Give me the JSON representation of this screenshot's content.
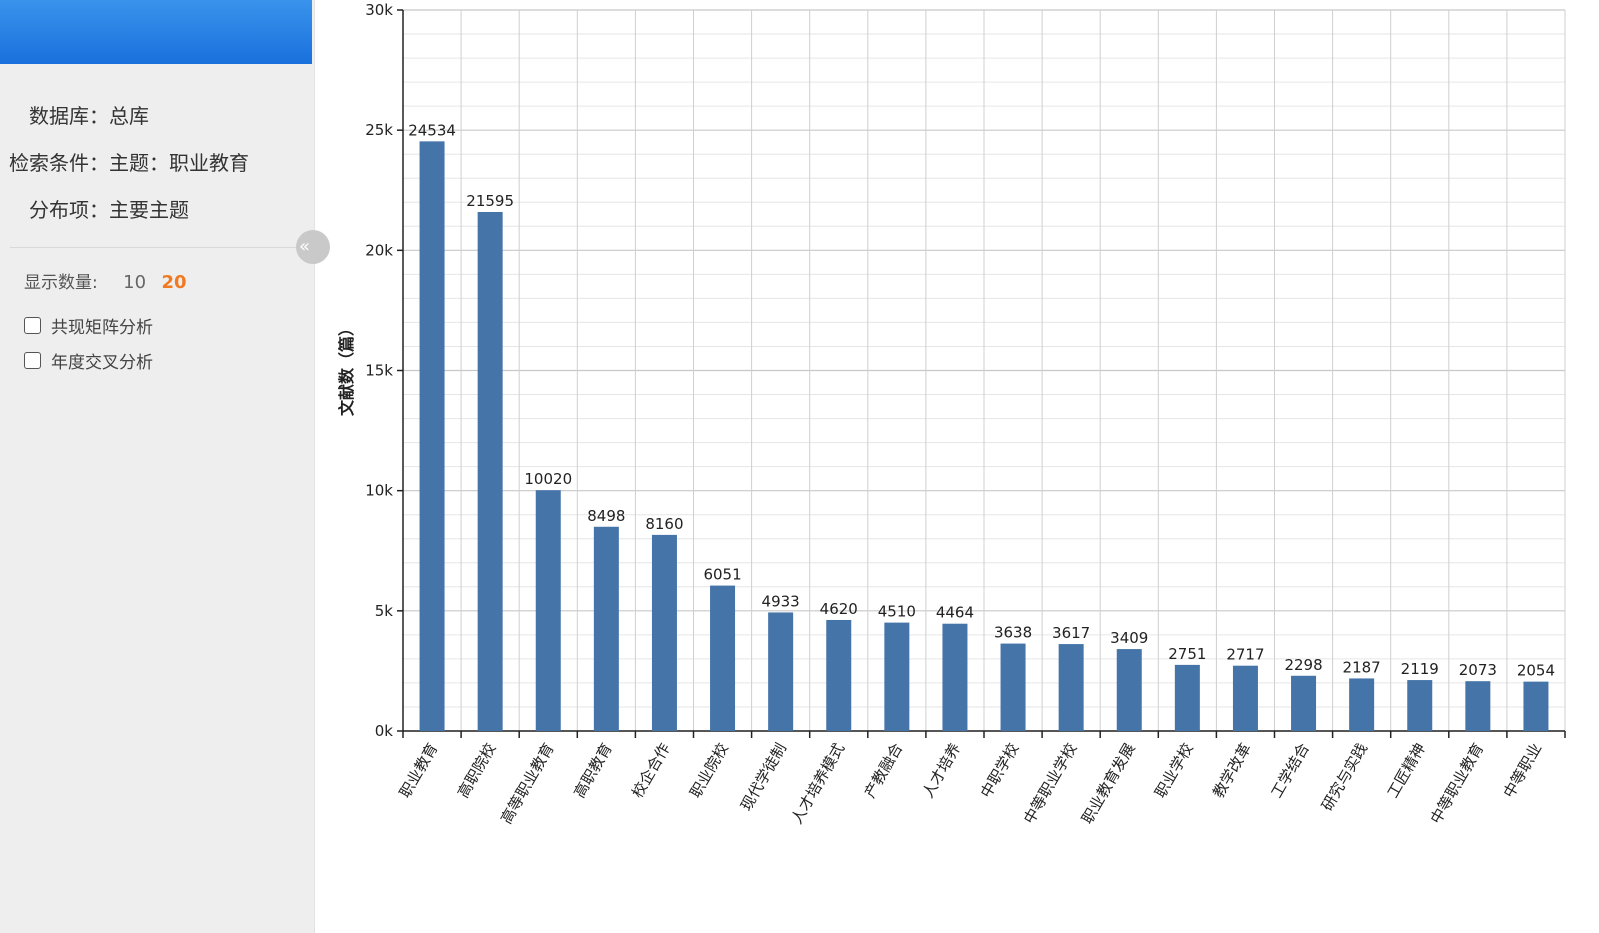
{
  "sidebar": {
    "database_label": "数据库：",
    "database_value": "总库",
    "criteria_label": "检索条件：",
    "criteria_value": "主题：职业教育",
    "distribution_label": "分布项：",
    "distribution_value": "主要主题",
    "collapse_icon": "«",
    "display_count_label": "显示数量:",
    "display_count_options": [
      "10",
      "20"
    ],
    "display_count_selected": "20",
    "checkboxes": [
      {
        "label": "共现矩阵分析",
        "checked": false
      },
      {
        "label": "年度交叉分析",
        "checked": false
      }
    ]
  },
  "colors": {
    "bar": "#4574a9",
    "header_top": "#3a93ec",
    "header_bottom": "#1a70dc",
    "selected_option": "#f07a22"
  },
  "chart_data": {
    "type": "bar",
    "title": "",
    "ylabel": "文献数（篇）",
    "xlabel": "",
    "ylim": [
      0,
      30000
    ],
    "y_ticks": [
      "0k",
      "5k",
      "10k",
      "15k",
      "20k",
      "25k",
      "30k"
    ],
    "grid": true,
    "categories": [
      "职业教育",
      "高职院校",
      "高等职业教育",
      "高职教育",
      "校企合作",
      "职业院校",
      "现代学徒制",
      "人才培养模式",
      "产教融合",
      "人才培养",
      "中职学校",
      "中等职业学校",
      "职业教育发展",
      "职业学校",
      "教学改革",
      "工学结合",
      "研究与实践",
      "工匠精神",
      "中等职业教育",
      "中等职业"
    ],
    "values": [
      24534,
      21595,
      10020,
      8498,
      8160,
      6051,
      4933,
      4620,
      4510,
      4464,
      3638,
      3617,
      3409,
      2751,
      2717,
      2298,
      2187,
      2119,
      2073,
      2054
    ]
  }
}
